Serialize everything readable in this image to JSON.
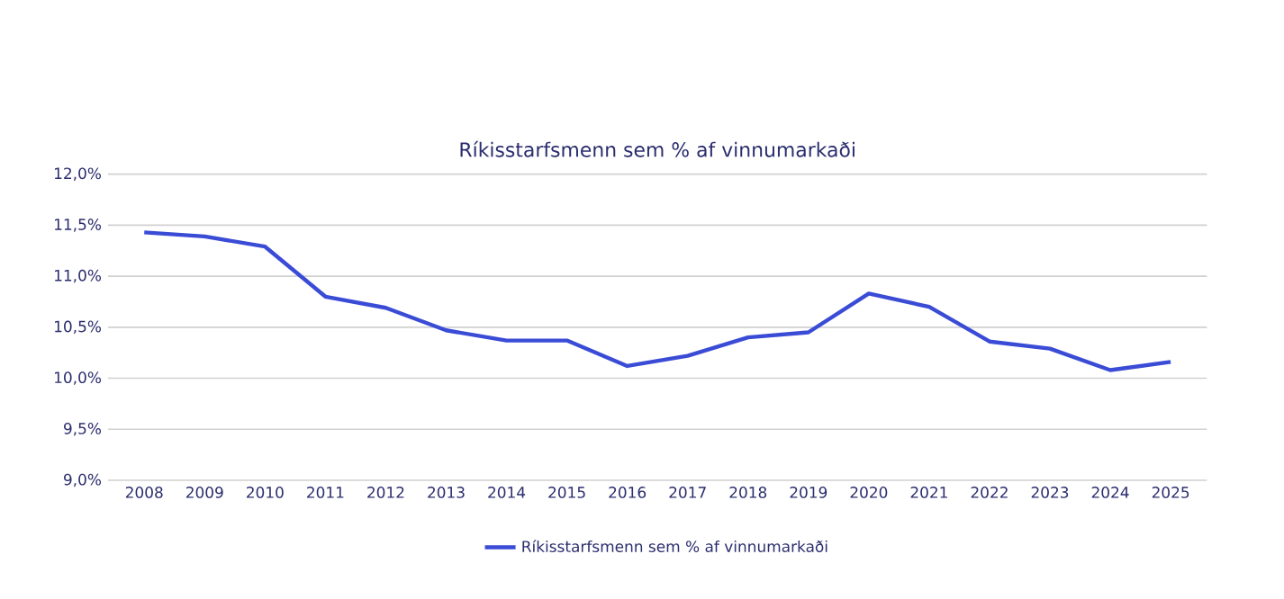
{
  "chart_data": {
    "type": "line",
    "title": "Ríkisstarfsmenn sem % af vinnumarkaði",
    "categories": [
      "2008",
      "2009",
      "2010",
      "2011",
      "2012",
      "2013",
      "2014",
      "2015",
      "2016",
      "2017",
      "2018",
      "2019",
      "2020",
      "2021",
      "2022",
      "2023",
      "2024",
      "2025"
    ],
    "series": [
      {
        "name": "Ríkisstarfsmenn sem % af vinnumarkaði",
        "color": "#3a4cd6",
        "values": [
          11.43,
          11.39,
          11.29,
          10.8,
          10.69,
          10.47,
          10.37,
          10.37,
          10.12,
          10.22,
          10.4,
          10.45,
          10.83,
          10.7,
          10.36,
          10.29,
          10.08,
          10.16
        ]
      }
    ],
    "ylim": [
      9.0,
      12.0
    ],
    "yticks": [
      {
        "value": 9.0,
        "label": "9,0%"
      },
      {
        "value": 9.5,
        "label": "9,5%"
      },
      {
        "value": 10.0,
        "label": "10,0%"
      },
      {
        "value": 10.5,
        "label": "10,5%"
      },
      {
        "value": 11.0,
        "label": "11,0%"
      },
      {
        "value": 11.5,
        "label": "11,5%"
      },
      {
        "value": 12.0,
        "label": "12,0%"
      }
    ],
    "grid": "y",
    "legend": "bottom",
    "marker": "none",
    "line_style": "solid"
  }
}
